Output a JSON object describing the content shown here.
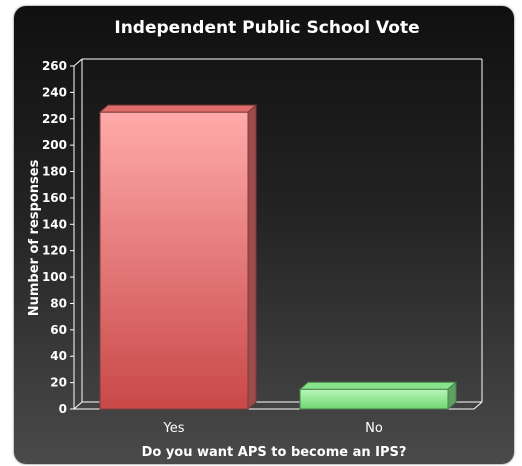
{
  "chart_data": {
    "type": "bar",
    "title": "Independent Public School Vote",
    "xlabel": "Do you want APS to become an IPS?",
    "ylabel": "Number of responses",
    "categories": [
      "Yes",
      "No"
    ],
    "values": [
      225,
      15
    ],
    "ylim": [
      0,
      260
    ],
    "yticks": [
      0,
      20,
      40,
      60,
      80,
      100,
      120,
      140,
      160,
      180,
      200,
      220,
      240,
      260
    ],
    "bar_colors": [
      "#e06b6b",
      "#86e58a"
    ],
    "grid": false,
    "legend": "none"
  }
}
